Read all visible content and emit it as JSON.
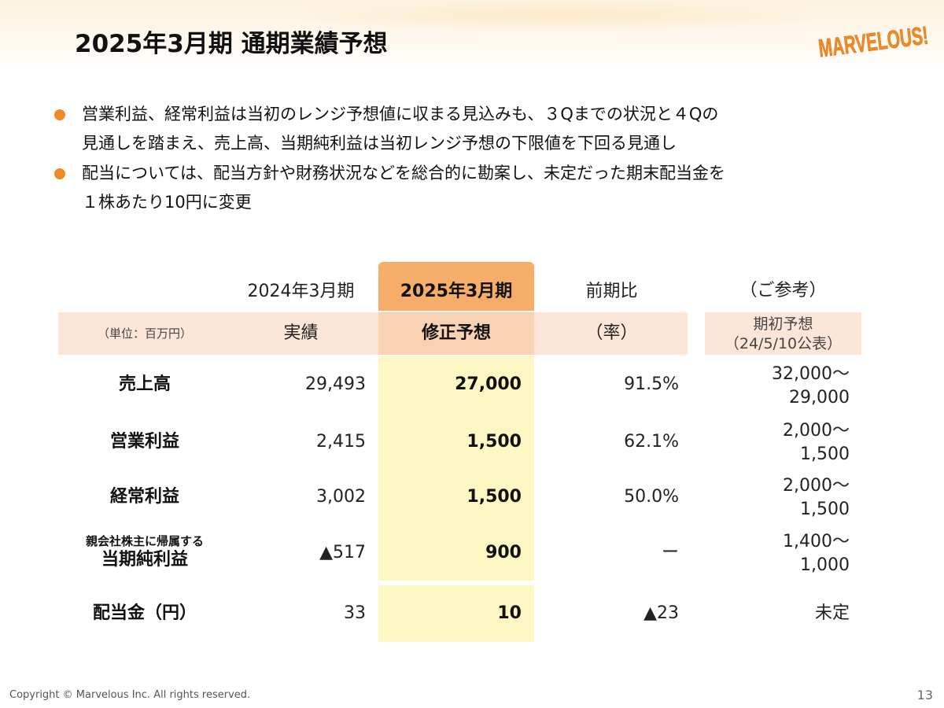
{
  "slide": {
    "title": "2025年3月期 通期業績予想",
    "logo_text": "MARVELOUS!",
    "bullets": [
      [
        "営業利益、経常利益は当初のレンジ予想値に収まる見込みも、３Qまでの状況と４Qの",
        "見通しを踏まえ、売上高、当期純利益は当初レンジ予想の下限値を下回る見通し"
      ],
      [
        "配当については、配当方針や財務状況などを総合的に勘案し、未定だった期末配当金を",
        "１株あたり10円に変更"
      ]
    ],
    "footer": "Copyright © Marvelous Inc. All rights reserved.",
    "page_number": "13"
  },
  "table": {
    "head": {
      "col1": "2024年3月期",
      "col2": "2025年3月期",
      "col3": "前期比",
      "col4": "（ご参考）"
    },
    "sub": {
      "unit": "（単位：百万円）",
      "col1": "実績",
      "col2": "修正予想",
      "col3": "（率）",
      "col4_line1": "期初予想",
      "col4_line2": "（24/5/10公表）"
    },
    "rows": [
      {
        "label": "売上高",
        "actual": "29,493",
        "forecast": "27,000",
        "ratio": "91.5%",
        "initial_line1": "32,000～",
        "initial_line2": "29,000"
      },
      {
        "label": "営業利益",
        "actual": "2,415",
        "forecast": "1,500",
        "ratio": "62.1%",
        "initial_line1": "2,000～",
        "initial_line2": "1,500"
      },
      {
        "label": "経常利益",
        "actual": "3,002",
        "forecast": "1,500",
        "ratio": "50.0%",
        "initial_line1": "2,000～",
        "initial_line2": "1,500"
      },
      {
        "label_line1": "親会社株主に帰属する",
        "label_line2": "当期純利益",
        "actual": "▲517",
        "forecast": "900",
        "ratio": "ー",
        "initial_line1": "1,400～",
        "initial_line2": "1,000"
      },
      {
        "label": "配当金（円）",
        "actual": "33",
        "forecast": "10",
        "ratio": "▲23",
        "initial": "未定"
      }
    ]
  },
  "colors": {
    "accent_orange": "#f08a24",
    "header_highlight": "#f6ad6a",
    "subheader_highlight": "#f9d2b3",
    "subheader_band": "#fbe6d8",
    "forecast_column": "#fdf7c4",
    "logo_orange": "#f08a24"
  }
}
